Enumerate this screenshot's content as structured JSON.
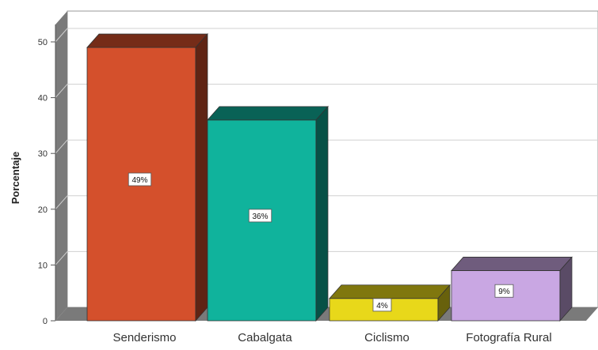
{
  "chart_data": {
    "type": "bar",
    "title": "",
    "xlabel": "",
    "ylabel": "Porcentaje",
    "ylim": [
      0,
      50
    ],
    "yticks": [
      0,
      10,
      20,
      30,
      40,
      50
    ],
    "grid": true,
    "style": "3d",
    "categories": [
      "Senderismo",
      "Cabalgata",
      "Ciclismo",
      "Fotografía Rural"
    ],
    "values": [
      49,
      36,
      4,
      9
    ],
    "data_labels": [
      "49%",
      "36%",
      "4%",
      "9%"
    ],
    "colors": [
      "#d4502c",
      "#10b39c",
      "#e8d81a",
      "#c9a7e3"
    ]
  }
}
